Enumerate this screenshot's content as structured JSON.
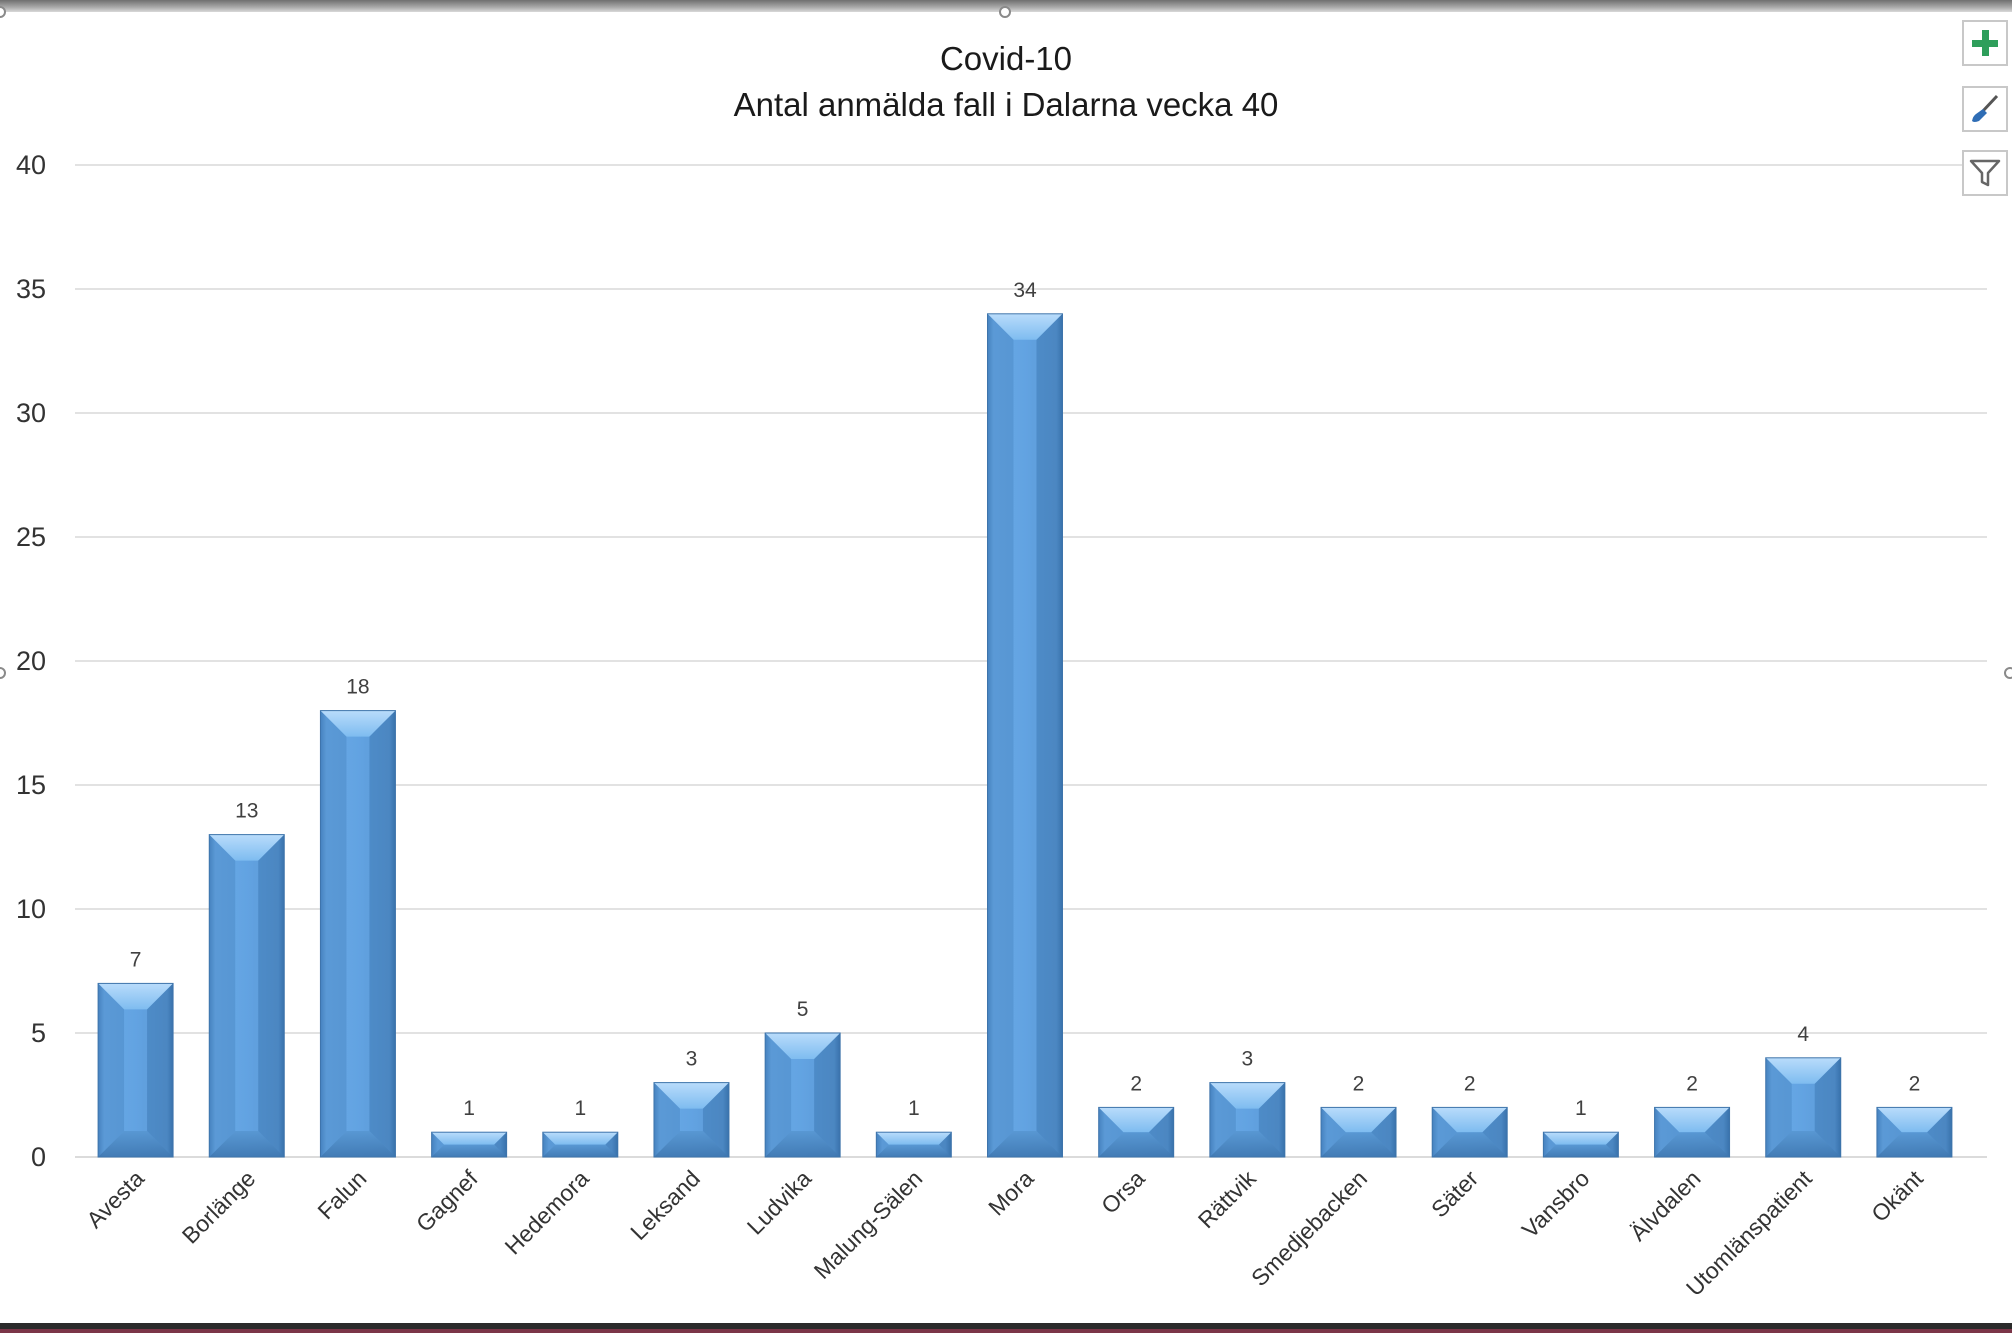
{
  "chart_data": {
    "type": "bar",
    "title": "Covid-10",
    "subtitle": "Antal anmälda fall i Dalarna vecka 40",
    "categories": [
      "Avesta",
      "Borlänge",
      "Falun",
      "Gagnef",
      "Hedemora",
      "Leksand",
      "Ludvika",
      "Malung-Sälen",
      "Mora",
      "Orsa",
      "Rättvik",
      "Smedjebacken",
      "Säter",
      "Vansbro",
      "Älvdalen",
      "Utomlänspatient",
      "Okänt"
    ],
    "values": [
      7,
      13,
      18,
      1,
      1,
      3,
      5,
      1,
      34,
      2,
      3,
      2,
      2,
      1,
      2,
      4,
      2
    ],
    "ylim": [
      0,
      40
    ],
    "yticks": [
      0,
      5,
      10,
      15,
      20,
      25,
      30,
      35,
      40
    ],
    "xlabel": "",
    "ylabel": "",
    "grid": true,
    "data_labels": true,
    "bar_color": "#5B9BD5"
  },
  "chart_tools": {
    "add_element_icon": "plus-icon",
    "style_icon": "brush-icon",
    "filter_icon": "funnel-icon",
    "plus_color": "#2E9E5B",
    "brush_color": "#2F6DB5"
  }
}
